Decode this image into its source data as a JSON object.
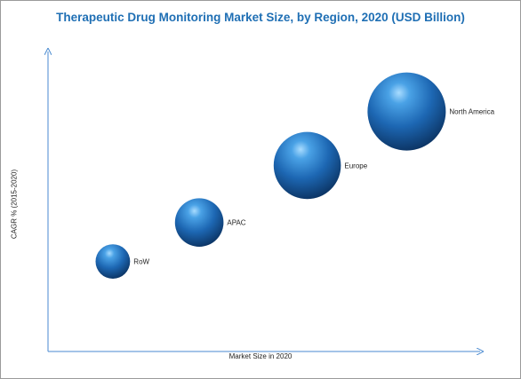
{
  "chart_data": {
    "type": "bubble",
    "title": "Therapeutic Drug Monitoring Market Size, by Region, 2020 (USD Billion)",
    "xlabel": "Market Size in 2020",
    "ylabel": "CAGR % (2015-2020)",
    "grid": false,
    "axes_ticks": false,
    "bubble_color": "#1e5a9c",
    "points": [
      {
        "label": "RoW",
        "x": 0.15,
        "y": 0.3,
        "size": 0.22
      },
      {
        "label": "APAC",
        "x": 0.35,
        "y": 0.43,
        "size": 0.31
      },
      {
        "label": "Europe",
        "x": 0.6,
        "y": 0.62,
        "size": 0.43
      },
      {
        "label": "North America",
        "x": 0.83,
        "y": 0.8,
        "size": 0.5
      }
    ]
  }
}
